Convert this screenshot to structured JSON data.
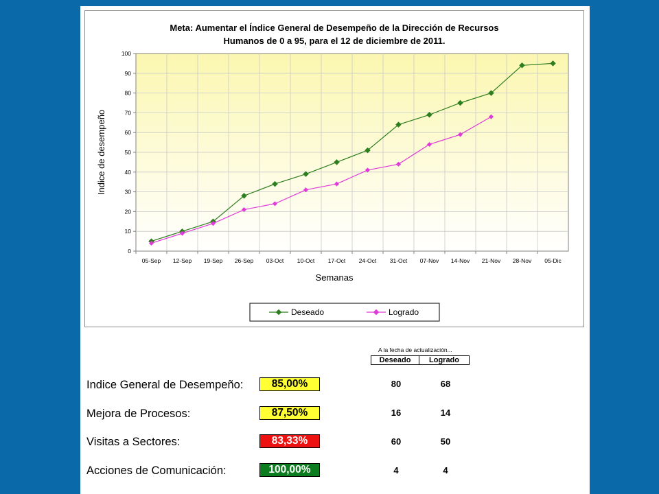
{
  "chart_data": {
    "type": "line",
    "title": "Meta: Aumentar el Índice General de Desempeño de la Dirección de Recursos",
    "subtitle": "Humanos de 0 a 95, para el 12 de diciembre de 2011.",
    "xlabel": "Semanas",
    "ylabel": "Indice de desempeño",
    "ylim": [
      0,
      100
    ],
    "yticks": [
      "0",
      "10",
      "20",
      "30",
      "40",
      "50",
      "60",
      "70",
      "80",
      "90",
      "100"
    ],
    "grid": true,
    "legend_position": "bottom",
    "categories": [
      "05-Sep",
      "12-Sep",
      "19-Sep",
      "26-Sep",
      "03-Oct",
      "10-Oct",
      "17-Oct",
      "24-Oct",
      "31-Oct",
      "07-Nov",
      "14-Nov",
      "21-Nov",
      "28-Nov",
      "05-Dic"
    ],
    "series": [
      {
        "name": "Deseado",
        "color": "#2e7d1e",
        "values": [
          5,
          10,
          15,
          28,
          34,
          39,
          45,
          51,
          64,
          69,
          75,
          80,
          94,
          95
        ]
      },
      {
        "name": "Logrado",
        "color": "#e03ad8",
        "values": [
          4,
          9,
          14,
          21,
          24,
          31,
          34,
          41,
          44,
          54,
          59,
          68,
          null,
          null
        ]
      }
    ]
  },
  "summary": {
    "note": "A la fecha de actualización...",
    "col_desired": "Deseado",
    "col_achieved": "Logrado",
    "rows": [
      {
        "label": "Indice General de Desempeño:",
        "percent": "85,00%",
        "color": "#ffff33",
        "text_color": "#000000",
        "desired": "80",
        "achieved": "68"
      },
      {
        "label": "Mejora de Procesos:",
        "percent": "87,50%",
        "color": "#ffff33",
        "text_color": "#000000",
        "desired": "16",
        "achieved": "14"
      },
      {
        "label": "Visitas a Sectores:",
        "percent": "83,33%",
        "color": "#ee1111",
        "text_color": "#ffffff",
        "desired": "60",
        "achieved": "50"
      },
      {
        "label": "Acciones de Comunicación:",
        "percent": "100,00%",
        "color": "#0b7d1e",
        "text_color": "#ffffff",
        "desired": "4",
        "achieved": "4"
      }
    ]
  }
}
